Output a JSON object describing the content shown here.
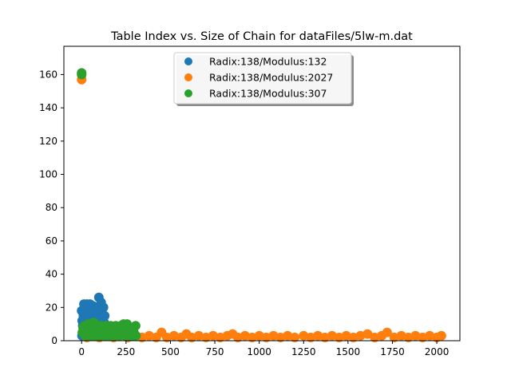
{
  "chart_data": {
    "type": "scatter",
    "title": "Table Index vs. Size of Chain for dataFiles/5lw-m.dat",
    "xlabel": "",
    "ylabel": "",
    "xlim": [
      -100,
      2130
    ],
    "ylim": [
      0,
      177
    ],
    "xticks": [
      0,
      250,
      500,
      750,
      1000,
      1250,
      1500,
      1750,
      2000
    ],
    "yticks": [
      0,
      20,
      40,
      60,
      80,
      100,
      120,
      140,
      160
    ],
    "grid": false,
    "legend_position": "top-center",
    "series": [
      {
        "name": "Radix:138/Modulus:132",
        "color": "#1f77b4",
        "points": [
          [
            0,
            18
          ],
          [
            3,
            12
          ],
          [
            6,
            9
          ],
          [
            10,
            15
          ],
          [
            13,
            22
          ],
          [
            16,
            17
          ],
          [
            20,
            13
          ],
          [
            24,
            20
          ],
          [
            27,
            15
          ],
          [
            30,
            22
          ],
          [
            33,
            10
          ],
          [
            37,
            17
          ],
          [
            40,
            20
          ],
          [
            43,
            13
          ],
          [
            47,
            22
          ],
          [
            50,
            15
          ],
          [
            53,
            19
          ],
          [
            57,
            11
          ],
          [
            60,
            16
          ],
          [
            63,
            21
          ],
          [
            66,
            13
          ],
          [
            70,
            18
          ],
          [
            73,
            9
          ],
          [
            77,
            14
          ],
          [
            80,
            20
          ],
          [
            83,
            12
          ],
          [
            87,
            17
          ],
          [
            90,
            11
          ],
          [
            93,
            19
          ],
          [
            97,
            26
          ],
          [
            100,
            13
          ],
          [
            103,
            21
          ],
          [
            106,
            16
          ],
          [
            110,
            23
          ],
          [
            113,
            12
          ],
          [
            116,
            19
          ],
          [
            120,
            14
          ],
          [
            123,
            20
          ],
          [
            127,
            11
          ],
          [
            130,
            15
          ],
          [
            2,
            3
          ],
          [
            20,
            5
          ],
          [
            45,
            4
          ],
          [
            75,
            6
          ],
          [
            105,
            5
          ],
          [
            125,
            7
          ]
        ]
      },
      {
        "name": "Radix:138/Modulus:2027",
        "color": "#ff7f0e",
        "points": [
          [
            0,
            157
          ],
          [
            30,
            2
          ],
          [
            60,
            3
          ],
          [
            100,
            2
          ],
          [
            140,
            3
          ],
          [
            180,
            2
          ],
          [
            220,
            3
          ],
          [
            260,
            2
          ],
          [
            300,
            3
          ],
          [
            340,
            2
          ],
          [
            380,
            3
          ],
          [
            420,
            2
          ],
          [
            450,
            5
          ],
          [
            480,
            2
          ],
          [
            520,
            3
          ],
          [
            560,
            2
          ],
          [
            590,
            4
          ],
          [
            620,
            2
          ],
          [
            660,
            3
          ],
          [
            700,
            2
          ],
          [
            740,
            3
          ],
          [
            780,
            2
          ],
          [
            820,
            3
          ],
          [
            850,
            4
          ],
          [
            880,
            2
          ],
          [
            920,
            3
          ],
          [
            960,
            2
          ],
          [
            1000,
            3
          ],
          [
            1040,
            2
          ],
          [
            1080,
            3
          ],
          [
            1120,
            2
          ],
          [
            1160,
            3
          ],
          [
            1200,
            2
          ],
          [
            1250,
            3
          ],
          [
            1290,
            2
          ],
          [
            1330,
            3
          ],
          [
            1370,
            2
          ],
          [
            1410,
            3
          ],
          [
            1450,
            2
          ],
          [
            1490,
            3
          ],
          [
            1530,
            2
          ],
          [
            1570,
            3
          ],
          [
            1610,
            4
          ],
          [
            1650,
            2
          ],
          [
            1690,
            3
          ],
          [
            1720,
            5
          ],
          [
            1760,
            2
          ],
          [
            1800,
            3
          ],
          [
            1840,
            2
          ],
          [
            1880,
            3
          ],
          [
            1920,
            2
          ],
          [
            1960,
            3
          ],
          [
            2000,
            2
          ],
          [
            2026,
            3
          ]
        ]
      },
      {
        "name": "Radix:138/Modulus:307",
        "color": "#2ca02c",
        "points": [
          [
            0,
            161
          ],
          [
            0,
            160
          ],
          [
            4,
            5
          ],
          [
            8,
            8
          ],
          [
            12,
            4
          ],
          [
            16,
            9
          ],
          [
            20,
            6
          ],
          [
            24,
            3
          ],
          [
            28,
            8
          ],
          [
            32,
            5
          ],
          [
            36,
            10
          ],
          [
            40,
            4
          ],
          [
            44,
            7
          ],
          [
            48,
            9
          ],
          [
            52,
            3
          ],
          [
            56,
            6
          ],
          [
            60,
            8
          ],
          [
            64,
            4
          ],
          [
            68,
            11
          ],
          [
            72,
            6
          ],
          [
            76,
            3
          ],
          [
            80,
            9
          ],
          [
            84,
            5
          ],
          [
            88,
            7
          ],
          [
            92,
            4
          ],
          [
            96,
            8
          ],
          [
            100,
            6
          ],
          [
            104,
            3
          ],
          [
            108,
            9
          ],
          [
            112,
            5
          ],
          [
            116,
            7
          ],
          [
            120,
            4
          ],
          [
            124,
            8
          ],
          [
            128,
            6
          ],
          [
            132,
            3
          ],
          [
            136,
            9
          ],
          [
            140,
            5
          ],
          [
            144,
            7
          ],
          [
            148,
            4
          ],
          [
            152,
            8
          ],
          [
            156,
            3
          ],
          [
            160,
            6
          ],
          [
            164,
            9
          ],
          [
            168,
            4
          ],
          [
            172,
            7
          ],
          [
            176,
            5
          ],
          [
            180,
            8
          ],
          [
            184,
            3
          ],
          [
            188,
            6
          ],
          [
            192,
            9
          ],
          [
            196,
            4
          ],
          [
            200,
            7
          ],
          [
            204,
            5
          ],
          [
            208,
            8
          ],
          [
            212,
            3
          ],
          [
            216,
            6
          ],
          [
            220,
            9
          ],
          [
            224,
            5
          ],
          [
            228,
            7
          ],
          [
            232,
            4
          ],
          [
            236,
            10
          ],
          [
            240,
            6
          ],
          [
            244,
            3
          ],
          [
            248,
            8
          ],
          [
            252,
            5
          ],
          [
            256,
            10
          ],
          [
            260,
            4
          ],
          [
            264,
            7
          ],
          [
            268,
            3
          ],
          [
            272,
            6
          ],
          [
            276,
            4
          ],
          [
            280,
            5
          ],
          [
            286,
            3
          ],
          [
            292,
            6
          ],
          [
            298,
            4
          ],
          [
            304,
            9
          ],
          [
            306,
            3
          ]
        ]
      }
    ]
  }
}
